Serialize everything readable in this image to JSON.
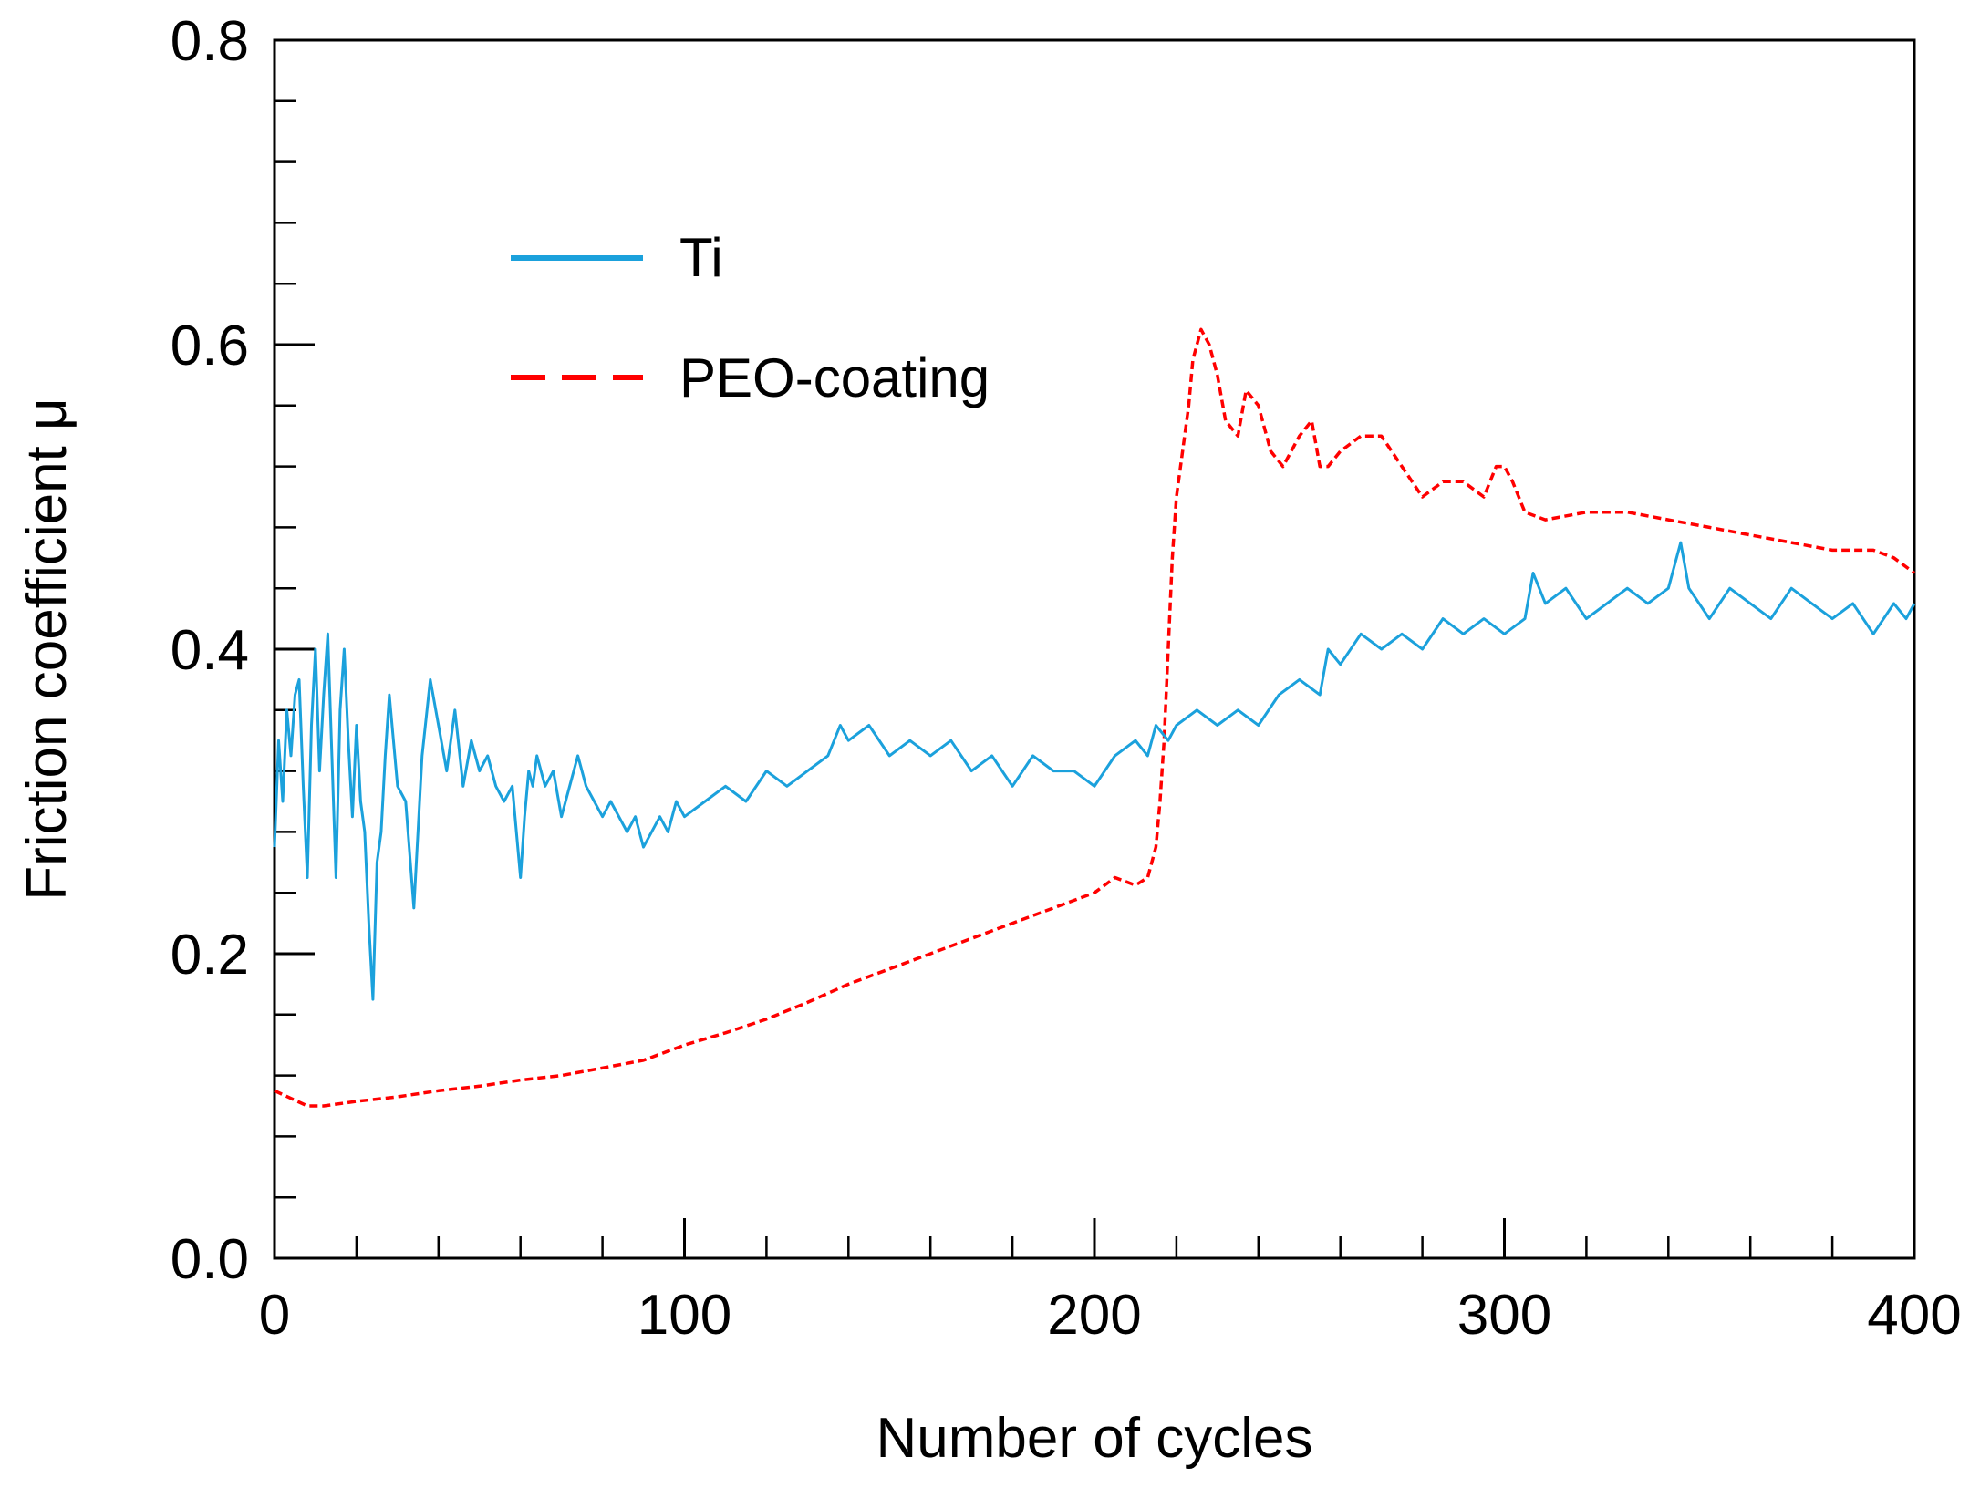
{
  "chart_data": {
    "type": "line",
    "title": "",
    "xlabel": "Number of cycles",
    "ylabel": "Friction coefficient μ",
    "xlim": [
      0,
      400
    ],
    "ylim": [
      0,
      0.8
    ],
    "x_ticks": [
      0,
      100,
      200,
      300,
      400
    ],
    "y_ticks": [
      0.0,
      0.2,
      0.4,
      0.6,
      0.8
    ],
    "x_tick_labels": [
      "0",
      "100",
      "200",
      "300",
      "400"
    ],
    "y_tick_labels": [
      "0.0",
      "0.2",
      "0.4",
      "0.6",
      "0.8"
    ],
    "x_minor_step": 20,
    "y_minor_step": 0.04,
    "grid": false,
    "legend_position": "upper-left-center",
    "series": [
      {
        "name": "Ti",
        "style": "solid",
        "color": "#1ba1dc",
        "x": [
          0,
          1,
          2,
          3,
          4,
          5,
          6,
          7,
          8,
          9,
          10,
          11,
          12,
          13,
          14,
          15,
          16,
          17,
          18,
          19,
          20,
          21,
          22,
          23,
          24,
          25,
          26,
          27,
          28,
          29,
          30,
          32,
          34,
          36,
          38,
          40,
          42,
          44,
          46,
          48,
          50,
          52,
          54,
          56,
          58,
          60,
          61,
          62,
          63,
          64,
          66,
          68,
          70,
          72,
          74,
          76,
          78,
          80,
          82,
          84,
          86,
          88,
          90,
          92,
          94,
          96,
          98,
          100,
          105,
          110,
          115,
          120,
          125,
          130,
          135,
          138,
          140,
          145,
          150,
          155,
          160,
          165,
          170,
          175,
          180,
          185,
          190,
          195,
          200,
          205,
          210,
          213,
          215,
          218,
          220,
          225,
          230,
          235,
          240,
          245,
          250,
          255,
          257,
          260,
          265,
          270,
          275,
          280,
          285,
          290,
          295,
          300,
          305,
          307,
          310,
          315,
          320,
          325,
          330,
          335,
          340,
          343,
          345,
          350,
          355,
          360,
          365,
          370,
          375,
          380,
          385,
          390,
          395,
          398,
          400
        ],
        "y": [
          0.27,
          0.34,
          0.3,
          0.36,
          0.33,
          0.37,
          0.38,
          0.31,
          0.25,
          0.35,
          0.4,
          0.32,
          0.37,
          0.41,
          0.33,
          0.25,
          0.36,
          0.4,
          0.34,
          0.29,
          0.35,
          0.3,
          0.28,
          0.22,
          0.17,
          0.26,
          0.28,
          0.33,
          0.37,
          0.34,
          0.31,
          0.3,
          0.23,
          0.33,
          0.38,
          0.35,
          0.32,
          0.36,
          0.31,
          0.34,
          0.32,
          0.33,
          0.31,
          0.3,
          0.31,
          0.25,
          0.29,
          0.32,
          0.31,
          0.33,
          0.31,
          0.32,
          0.29,
          0.31,
          0.33,
          0.31,
          0.3,
          0.29,
          0.3,
          0.29,
          0.28,
          0.29,
          0.27,
          0.28,
          0.29,
          0.28,
          0.3,
          0.29,
          0.3,
          0.31,
          0.3,
          0.32,
          0.31,
          0.32,
          0.33,
          0.35,
          0.34,
          0.35,
          0.33,
          0.34,
          0.33,
          0.34,
          0.32,
          0.33,
          0.31,
          0.33,
          0.32,
          0.32,
          0.31,
          0.33,
          0.34,
          0.33,
          0.35,
          0.34,
          0.35,
          0.36,
          0.35,
          0.36,
          0.35,
          0.37,
          0.38,
          0.37,
          0.4,
          0.39,
          0.41,
          0.4,
          0.41,
          0.4,
          0.42,
          0.41,
          0.42,
          0.41,
          0.42,
          0.45,
          0.43,
          0.44,
          0.42,
          0.43,
          0.44,
          0.43,
          0.44,
          0.47,
          0.44,
          0.42,
          0.44,
          0.43,
          0.42,
          0.44,
          0.43,
          0.42,
          0.43,
          0.41,
          0.43,
          0.42,
          0.43
        ]
      },
      {
        "name": "PEO-coating",
        "style": "dashed",
        "color": "#ff0000",
        "x": [
          0,
          4,
          8,
          12,
          20,
          30,
          40,
          50,
          60,
          70,
          80,
          90,
          100,
          110,
          120,
          130,
          140,
          150,
          160,
          170,
          180,
          190,
          200,
          205,
          210,
          213,
          215,
          216,
          217,
          218,
          219,
          220,
          221,
          222,
          223,
          224,
          225,
          226,
          228,
          230,
          232,
          235,
          237,
          240,
          243,
          246,
          250,
          253,
          255,
          257,
          260,
          265,
          270,
          275,
          280,
          285,
          290,
          295,
          298,
          300,
          302,
          305,
          310,
          320,
          330,
          340,
          350,
          360,
          370,
          380,
          390,
          395,
          400
        ],
        "y": [
          0.11,
          0.105,
          0.1,
          0.1,
          0.103,
          0.106,
          0.11,
          0.113,
          0.117,
          0.12,
          0.125,
          0.13,
          0.14,
          0.148,
          0.157,
          0.168,
          0.18,
          0.19,
          0.2,
          0.21,
          0.22,
          0.23,
          0.24,
          0.25,
          0.245,
          0.25,
          0.27,
          0.3,
          0.34,
          0.4,
          0.46,
          0.5,
          0.52,
          0.54,
          0.56,
          0.59,
          0.6,
          0.61,
          0.6,
          0.58,
          0.55,
          0.54,
          0.57,
          0.56,
          0.53,
          0.52,
          0.54,
          0.55,
          0.52,
          0.52,
          0.53,
          0.54,
          0.54,
          0.52,
          0.5,
          0.51,
          0.51,
          0.5,
          0.52,
          0.52,
          0.51,
          0.49,
          0.485,
          0.49,
          0.49,
          0.485,
          0.48,
          0.475,
          0.47,
          0.465,
          0.465,
          0.46,
          0.45
        ]
      }
    ]
  }
}
